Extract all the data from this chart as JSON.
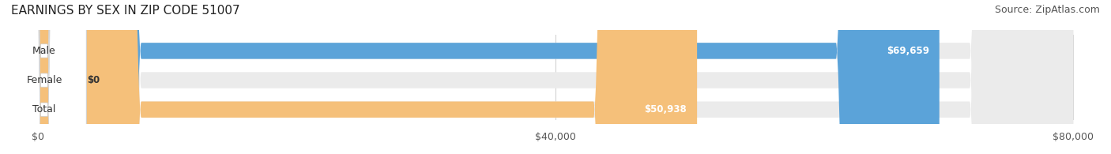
{
  "title": "EARNINGS BY SEX IN ZIP CODE 51007",
  "source": "Source: ZipAtlas.com",
  "categories": [
    "Male",
    "Female",
    "Total"
  ],
  "values": [
    69659,
    0,
    50938
  ],
  "bar_colors": [
    "#5ba3d9",
    "#f4a0b0",
    "#f5c07a"
  ],
  "bar_bg_color": "#f0f0f0",
  "label_bg_color": "#ffffff",
  "x_max": 80000,
  "x_ticks": [
    0,
    40000,
    80000
  ],
  "x_tick_labels": [
    "$0",
    "$40,000",
    "$80,000"
  ],
  "value_labels": [
    "$69,659",
    "$0",
    "$50,938"
  ],
  "title_fontsize": 11,
  "source_fontsize": 9,
  "tick_fontsize": 9,
  "bar_label_fontsize": 8.5,
  "cat_label_fontsize": 9,
  "background_color": "#ffffff",
  "grid_color": "#cccccc"
}
